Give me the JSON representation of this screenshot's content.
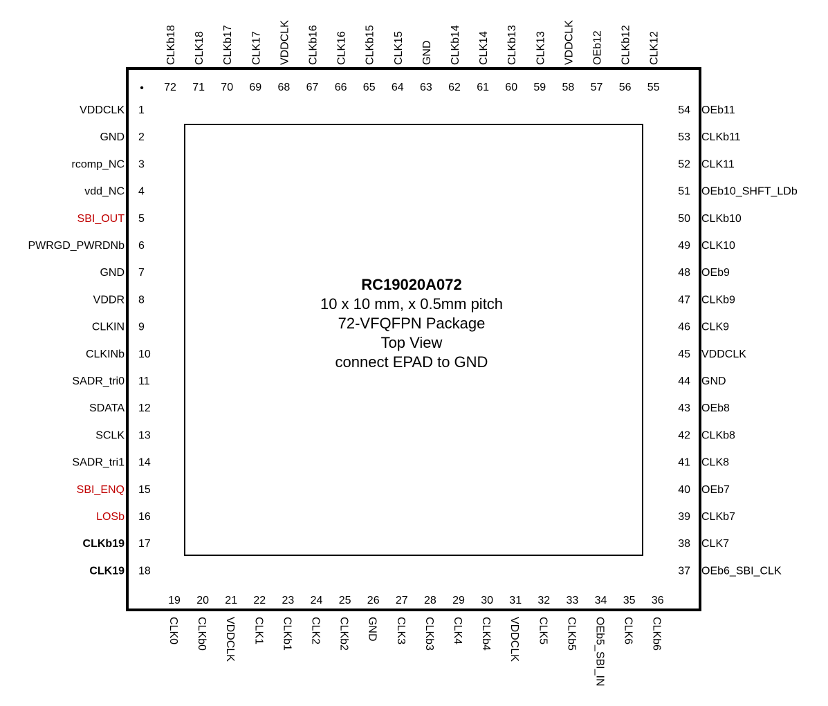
{
  "package": {
    "part_number": "RC19020A072",
    "lines": [
      "10 x 10 mm, x 0.5mm pitch",
      "72-VFQFPN Package",
      "Top View",
      "connect EPAD to GND"
    ],
    "pin1_marker": "•"
  },
  "colors": {
    "normal": "#000000",
    "highlight": "#c00000"
  },
  "left_pins": [
    {
      "num": "1",
      "name": "VDDCLK"
    },
    {
      "num": "2",
      "name": "GND"
    },
    {
      "num": "3",
      "name": "rcomp_NC"
    },
    {
      "num": "4",
      "name": "vdd_NC"
    },
    {
      "num": "5",
      "name": "SBI_OUT",
      "color": "red"
    },
    {
      "num": "6",
      "name": "PWRGD_PWRDNb"
    },
    {
      "num": "7",
      "name": "GND"
    },
    {
      "num": "8",
      "name": "VDDR"
    },
    {
      "num": "9",
      "name": "CLKIN"
    },
    {
      "num": "10",
      "name": "CLKINb"
    },
    {
      "num": "11",
      "name": "SADR_tri0"
    },
    {
      "num": "12",
      "name": "SDATA"
    },
    {
      "num": "13",
      "name": "SCLK"
    },
    {
      "num": "14",
      "name": "SADR_tri1"
    },
    {
      "num": "15",
      "name": "SBI_ENQ",
      "color": "red"
    },
    {
      "num": "16",
      "name": "LOSb",
      "color": "red"
    },
    {
      "num": "17",
      "name": "CLKb19",
      "bold": true
    },
    {
      "num": "18",
      "name": "CLK19",
      "bold": true
    }
  ],
  "bottom_pins": [
    {
      "num": "19",
      "name": "CLK0"
    },
    {
      "num": "20",
      "name": "CLKb0"
    },
    {
      "num": "21",
      "name": "VDDCLK"
    },
    {
      "num": "22",
      "name": "CLK1"
    },
    {
      "num": "23",
      "name": "CLKb1"
    },
    {
      "num": "24",
      "name": "CLK2"
    },
    {
      "num": "25",
      "name": "CLKb2"
    },
    {
      "num": "26",
      "name": "GND"
    },
    {
      "num": "27",
      "name": "CLK3"
    },
    {
      "num": "28",
      "name": "CLKb3"
    },
    {
      "num": "29",
      "name": "CLK4"
    },
    {
      "num": "30",
      "name": "CLKb4"
    },
    {
      "num": "31",
      "name": "VDDCLK"
    },
    {
      "num": "32",
      "name": "CLK5"
    },
    {
      "num": "33",
      "name": "CLKb5"
    },
    {
      "num": "34",
      "name": "OEb5_SBI_IN"
    },
    {
      "num": "35",
      "name": "CLK6"
    },
    {
      "num": "36",
      "name": "CLKb6"
    }
  ],
  "right_pins": [
    {
      "num": "54",
      "name": "OEb11"
    },
    {
      "num": "53",
      "name": "CLKb11"
    },
    {
      "num": "52",
      "name": "CLK11"
    },
    {
      "num": "51",
      "name": "OEb10_SHFT_LDb"
    },
    {
      "num": "50",
      "name": "CLKb10"
    },
    {
      "num": "49",
      "name": "CLK10"
    },
    {
      "num": "48",
      "name": "OEb9"
    },
    {
      "num": "47",
      "name": "CLKb9"
    },
    {
      "num": "46",
      "name": "CLK9"
    },
    {
      "num": "45",
      "name": "VDDCLK"
    },
    {
      "num": "44",
      "name": "GND"
    },
    {
      "num": "43",
      "name": "OEb8"
    },
    {
      "num": "42",
      "name": "CLKb8"
    },
    {
      "num": "41",
      "name": "CLK8"
    },
    {
      "num": "40",
      "name": "OEb7"
    },
    {
      "num": "39",
      "name": "CLKb7"
    },
    {
      "num": "38",
      "name": "CLK7"
    },
    {
      "num": "37",
      "name": "OEb6_SBI_CLK"
    }
  ],
  "top_pins": [
    {
      "num": "72",
      "name": "CLKb18"
    },
    {
      "num": "71",
      "name": "CLK18"
    },
    {
      "num": "70",
      "name": "CLKb17"
    },
    {
      "num": "69",
      "name": "CLK17"
    },
    {
      "num": "68",
      "name": "VDDCLK"
    },
    {
      "num": "67",
      "name": "CLKb16"
    },
    {
      "num": "66",
      "name": "CLK16"
    },
    {
      "num": "65",
      "name": "CLKb15"
    },
    {
      "num": "64",
      "name": "CLK15"
    },
    {
      "num": "63",
      "name": "GND"
    },
    {
      "num": "62",
      "name": "CLKb14"
    },
    {
      "num": "61",
      "name": "CLK14"
    },
    {
      "num": "60",
      "name": "CLKb13"
    },
    {
      "num": "59",
      "name": "CLK13"
    },
    {
      "num": "58",
      "name": "VDDCLK"
    },
    {
      "num": "57",
      "name": "OEb12"
    },
    {
      "num": "56",
      "name": "CLKb12"
    },
    {
      "num": "55",
      "name": "CLK12"
    }
  ]
}
